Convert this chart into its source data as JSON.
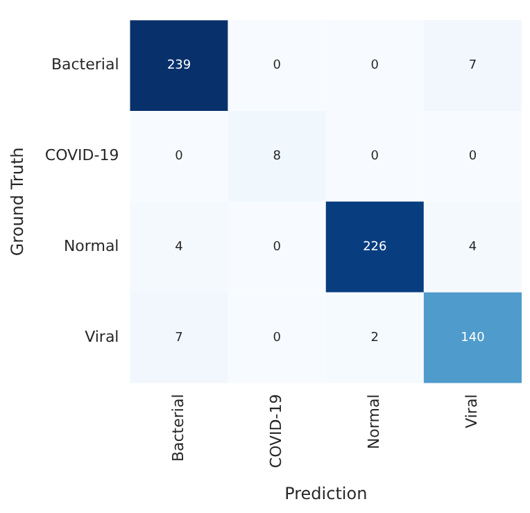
{
  "chart_data": {
    "type": "heatmap",
    "xlabel": "Prediction",
    "ylabel": "Ground Truth",
    "categories": [
      "Bacterial",
      "COVID-19",
      "Normal",
      "Viral"
    ],
    "y_categories": [
      "Bacterial",
      "COVID-19",
      "Normal",
      "Viral"
    ],
    "cells": [
      [
        239,
        0,
        0,
        7
      ],
      [
        0,
        8,
        0,
        0
      ],
      [
        4,
        0,
        226,
        4
      ],
      [
        7,
        0,
        2,
        140
      ]
    ],
    "colors": [
      "#f7fbff",
      "#deebf7",
      "#c6dbef",
      "#9ecae1",
      "#6baed6",
      "#4292c6",
      "#2171b5",
      "#08519c",
      "#08306b"
    ],
    "data_labels": true
  }
}
